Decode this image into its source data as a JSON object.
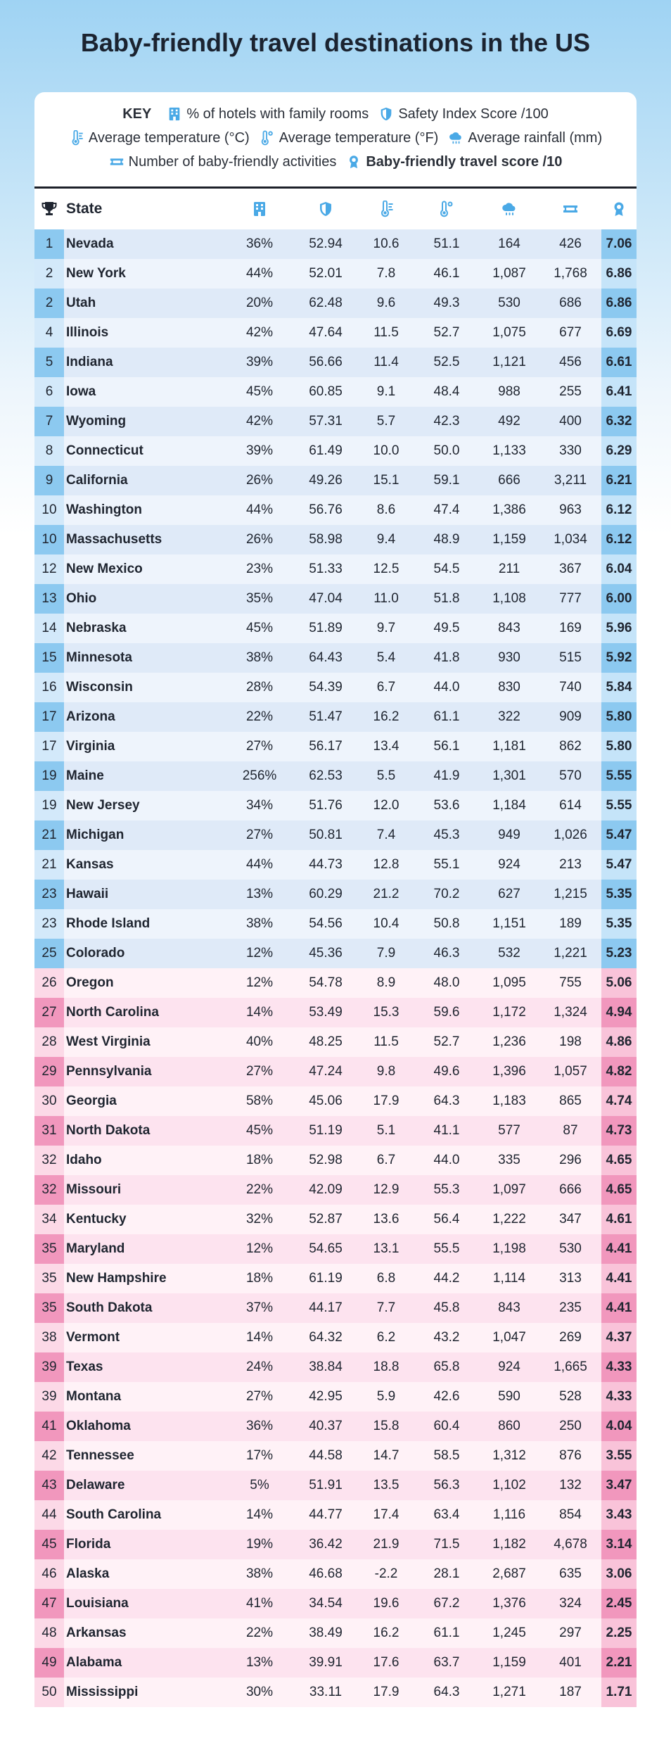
{
  "title": "Baby-friendly travel destinations in the US",
  "colors": {
    "accent_blue": "#4aa9e6",
    "blue_strong": "#8cc9f0",
    "pink_strong": "#f197bd"
  },
  "key": {
    "label": "KEY",
    "items": [
      {
        "icon": "hotel-icon",
        "text": "% of hotels with family rooms"
      },
      {
        "icon": "shield-icon",
        "text": "Safety Index Score /100"
      },
      {
        "icon": "thermometer-c-icon",
        "text": "Average temperature (°C)"
      },
      {
        "icon": "thermometer-f-icon",
        "text": "Average temperature (°F)"
      },
      {
        "icon": "rain-cloud-icon",
        "text": "Average rainfall (mm)"
      },
      {
        "icon": "ticket-icon",
        "text": "Number of baby-friendly activities"
      },
      {
        "icon": "award-icon",
        "text": "Baby-friendly travel score /10"
      }
    ]
  },
  "table": {
    "state_header": "State",
    "header_icons": [
      "trophy-icon",
      "hotel-icon",
      "shield-icon",
      "thermometer-c-icon",
      "thermometer-f-icon",
      "rain-cloud-icon",
      "ticket-icon",
      "award-icon"
    ]
  },
  "chart_data": {
    "type": "table",
    "title": "Baby-friendly travel destinations in the US",
    "columns": [
      "Rank",
      "State",
      "% of hotels with family rooms",
      "Safety Index Score /100",
      "Average temperature (°C)",
      "Average temperature (°F)",
      "Average rainfall (mm)",
      "Number of baby-friendly activities",
      "Baby-friendly travel score /10"
    ],
    "rows": [
      [
        "1",
        "Nevada",
        "36%",
        "52.94",
        "10.6",
        "51.1",
        "164",
        "426",
        "7.06"
      ],
      [
        "2",
        "New York",
        "44%",
        "52.01",
        "7.8",
        "46.1",
        "1,087",
        "1,768",
        "6.86"
      ],
      [
        "2",
        "Utah",
        "20%",
        "62.48",
        "9.6",
        "49.3",
        "530",
        "686",
        "6.86"
      ],
      [
        "4",
        "Illinois",
        "42%",
        "47.64",
        "11.5",
        "52.7",
        "1,075",
        "677",
        "6.69"
      ],
      [
        "5",
        "Indiana",
        "39%",
        "56.66",
        "11.4",
        "52.5",
        "1,121",
        "456",
        "6.61"
      ],
      [
        "6",
        "Iowa",
        "45%",
        "60.85",
        "9.1",
        "48.4",
        "988",
        "255",
        "6.41"
      ],
      [
        "7",
        "Wyoming",
        "42%",
        "57.31",
        "5.7",
        "42.3",
        "492",
        "400",
        "6.32"
      ],
      [
        "8",
        "Connecticut",
        "39%",
        "61.49",
        "10.0",
        "50.0",
        "1,133",
        "330",
        "6.29"
      ],
      [
        "9",
        "California",
        "26%",
        "49.26",
        "15.1",
        "59.1",
        "666",
        "3,211",
        "6.21"
      ],
      [
        "10",
        "Washington",
        "44%",
        "56.76",
        "8.6",
        "47.4",
        "1,386",
        "963",
        "6.12"
      ],
      [
        "10",
        "Massachusetts",
        "26%",
        "58.98",
        "9.4",
        "48.9",
        "1,159",
        "1,034",
        "6.12"
      ],
      [
        "12",
        "New Mexico",
        "23%",
        "51.33",
        "12.5",
        "54.5",
        "211",
        "367",
        "6.04"
      ],
      [
        "13",
        "Ohio",
        "35%",
        "47.04",
        "11.0",
        "51.8",
        "1,108",
        "777",
        "6.00"
      ],
      [
        "14",
        "Nebraska",
        "45%",
        "51.89",
        "9.7",
        "49.5",
        "843",
        "169",
        "5.96"
      ],
      [
        "15",
        "Minnesota",
        "38%",
        "64.43",
        "5.4",
        "41.8",
        "930",
        "515",
        "5.92"
      ],
      [
        "16",
        "Wisconsin",
        "28%",
        "54.39",
        "6.7",
        "44.0",
        "830",
        "740",
        "5.84"
      ],
      [
        "17",
        "Arizona",
        "22%",
        "51.47",
        "16.2",
        "61.1",
        "322",
        "909",
        "5.80"
      ],
      [
        "17",
        "Virginia",
        "27%",
        "56.17",
        "13.4",
        "56.1",
        "1,181",
        "862",
        "5.80"
      ],
      [
        "19",
        "Maine",
        "256%",
        "62.53",
        "5.5",
        "41.9",
        "1,301",
        "570",
        "5.55"
      ],
      [
        "19",
        "New Jersey",
        "34%",
        "51.76",
        "12.0",
        "53.6",
        "1,184",
        "614",
        "5.55"
      ],
      [
        "21",
        "Michigan",
        "27%",
        "50.81",
        "7.4",
        "45.3",
        "949",
        "1,026",
        "5.47"
      ],
      [
        "21",
        "Kansas",
        "44%",
        "44.73",
        "12.8",
        "55.1",
        "924",
        "213",
        "5.47"
      ],
      [
        "23",
        "Hawaii",
        "13%",
        "60.29",
        "21.2",
        "70.2",
        "627",
        "1,215",
        "5.35"
      ],
      [
        "23",
        "Rhode Island",
        "38%",
        "54.56",
        "10.4",
        "50.8",
        "1,151",
        "189",
        "5.35"
      ],
      [
        "25",
        "Colorado",
        "12%",
        "45.36",
        "7.9",
        "46.3",
        "532",
        "1,221",
        "5.23"
      ],
      [
        "26",
        "Oregon",
        "12%",
        "54.78",
        "8.9",
        "48.0",
        "1,095",
        "755",
        "5.06"
      ],
      [
        "27",
        "North Carolina",
        "14%",
        "53.49",
        "15.3",
        "59.6",
        "1,172",
        "1,324",
        "4.94"
      ],
      [
        "28",
        "West Virginia",
        "40%",
        "48.25",
        "11.5",
        "52.7",
        "1,236",
        "198",
        "4.86"
      ],
      [
        "29",
        "Pennsylvania",
        "27%",
        "47.24",
        "9.8",
        "49.6",
        "1,396",
        "1,057",
        "4.82"
      ],
      [
        "30",
        "Georgia",
        "58%",
        "45.06",
        "17.9",
        "64.3",
        "1,183",
        "865",
        "4.74"
      ],
      [
        "31",
        "North Dakota",
        "45%",
        "51.19",
        "5.1",
        "41.1",
        "577",
        "87",
        "4.73"
      ],
      [
        "32",
        "Idaho",
        "18%",
        "52.98",
        "6.7",
        "44.0",
        "335",
        "296",
        "4.65"
      ],
      [
        "32",
        "Missouri",
        "22%",
        "42.09",
        "12.9",
        "55.3",
        "1,097",
        "666",
        "4.65"
      ],
      [
        "34",
        "Kentucky",
        "32%",
        "52.87",
        "13.6",
        "56.4",
        "1,222",
        "347",
        "4.61"
      ],
      [
        "35",
        "Maryland",
        "12%",
        "54.65",
        "13.1",
        "55.5",
        "1,198",
        "530",
        "4.41"
      ],
      [
        "35",
        "New Hampshire",
        "18%",
        "61.19",
        "6.8",
        "44.2",
        "1,114",
        "313",
        "4.41"
      ],
      [
        "35",
        "South Dakota",
        "37%",
        "44.17",
        "7.7",
        "45.8",
        "843",
        "235",
        "4.41"
      ],
      [
        "38",
        "Vermont",
        "14%",
        "64.32",
        "6.2",
        "43.2",
        "1,047",
        "269",
        "4.37"
      ],
      [
        "39",
        "Texas",
        "24%",
        "38.84",
        "18.8",
        "65.8",
        "924",
        "1,665",
        "4.33"
      ],
      [
        "39",
        "Montana",
        "27%",
        "42.95",
        "5.9",
        "42.6",
        "590",
        "528",
        "4.33"
      ],
      [
        "41",
        "Oklahoma",
        "36%",
        "40.37",
        "15.8",
        "60.4",
        "860",
        "250",
        "4.04"
      ],
      [
        "42",
        "Tennessee",
        "17%",
        "44.58",
        "14.7",
        "58.5",
        "1,312",
        "876",
        "3.55"
      ],
      [
        "43",
        "Delaware",
        "5%",
        "51.91",
        "13.5",
        "56.3",
        "1,102",
        "132",
        "3.47"
      ],
      [
        "44",
        "South Carolina",
        "14%",
        "44.77",
        "17.4",
        "63.4",
        "1,116",
        "854",
        "3.43"
      ],
      [
        "45",
        "Florida",
        "19%",
        "36.42",
        "21.9",
        "71.5",
        "1,182",
        "4,678",
        "3.14"
      ],
      [
        "46",
        "Alaska",
        "38%",
        "46.68",
        "-2.2",
        "28.1",
        "2,687",
        "635",
        "3.06"
      ],
      [
        "47",
        "Louisiana",
        "41%",
        "34.54",
        "19.6",
        "67.2",
        "1,376",
        "324",
        "2.45"
      ],
      [
        "48",
        "Arkansas",
        "22%",
        "38.49",
        "16.2",
        "61.1",
        "1,245",
        "297",
        "2.25"
      ],
      [
        "49",
        "Alabama",
        "13%",
        "39.91",
        "17.6",
        "63.7",
        "1,159",
        "401",
        "2.21"
      ],
      [
        "50",
        "Mississippi",
        "30%",
        "33.11",
        "17.9",
        "64.3",
        "1,271",
        "187",
        "1.71"
      ]
    ]
  }
}
